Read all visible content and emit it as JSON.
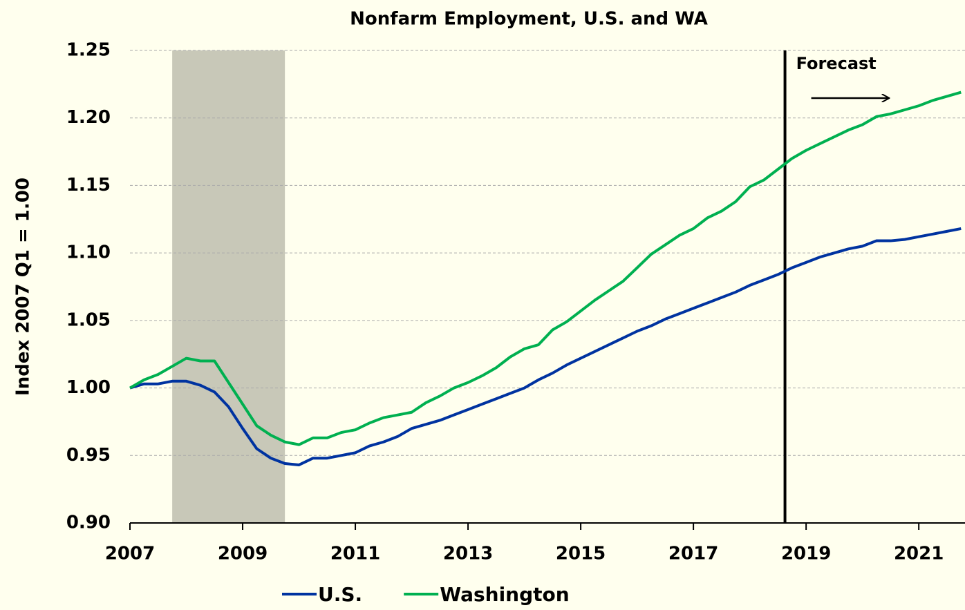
{
  "chart_data": {
    "type": "line",
    "title": "Nonfarm Employment, U.S. and WA",
    "y_label": "Index 2007 Q1 = 1.00",
    "annotation": "Forecast",
    "forecast_start": 2018.625,
    "recession": [
      2007.75,
      2009.75
    ],
    "x": [
      2007,
      2007.25,
      2007.5,
      2007.75,
      2008,
      2008.25,
      2008.5,
      2008.75,
      2009,
      2009.25,
      2009.5,
      2009.75,
      2010,
      2010.25,
      2010.5,
      2010.75,
      2011,
      2011.25,
      2011.5,
      2011.75,
      2012,
      2012.25,
      2012.5,
      2012.75,
      2013,
      2013.25,
      2013.5,
      2013.75,
      2014,
      2014.25,
      2014.5,
      2014.75,
      2015,
      2015.25,
      2015.5,
      2015.75,
      2016,
      2016.25,
      2016.5,
      2016.75,
      2017,
      2017.25,
      2017.5,
      2017.75,
      2018,
      2018.25,
      2018.5,
      2018.75,
      2019,
      2019.25,
      2019.5,
      2019.75,
      2020,
      2020.25,
      2020.5,
      2020.75,
      2021,
      2021.25,
      2021.5,
      2021.75
    ],
    "series": [
      {
        "name": "U.S.",
        "color": "#0033a0",
        "values": [
          1.0,
          1.003,
          1.003,
          1.005,
          1.005,
          1.002,
          0.997,
          0.986,
          0.97,
          0.955,
          0.948,
          0.944,
          0.943,
          0.948,
          0.948,
          0.95,
          0.952,
          0.957,
          0.96,
          0.964,
          0.97,
          0.973,
          0.976,
          0.98,
          0.984,
          0.988,
          0.992,
          0.996,
          1.0,
          1.006,
          1.011,
          1.017,
          1.022,
          1.027,
          1.032,
          1.037,
          1.042,
          1.046,
          1.051,
          1.055,
          1.059,
          1.063,
          1.067,
          1.071,
          1.076,
          1.08,
          1.084,
          1.089,
          1.093,
          1.097,
          1.1,
          1.103,
          1.105,
          1.109,
          1.109,
          1.11,
          1.112,
          1.114,
          1.116,
          1.118
        ]
      },
      {
        "name": "Washington",
        "color": "#00b050",
        "values": [
          1.0,
          1.006,
          1.01,
          1.016,
          1.022,
          1.02,
          1.02,
          1.004,
          0.988,
          0.972,
          0.965,
          0.96,
          0.958,
          0.963,
          0.963,
          0.967,
          0.969,
          0.974,
          0.978,
          0.98,
          0.982,
          0.989,
          0.994,
          1.0,
          1.004,
          1.009,
          1.015,
          1.023,
          1.029,
          1.032,
          1.043,
          1.049,
          1.057,
          1.065,
          1.072,
          1.079,
          1.089,
          1.099,
          1.106,
          1.113,
          1.118,
          1.126,
          1.131,
          1.138,
          1.149,
          1.154,
          1.162,
          1.17,
          1.176,
          1.181,
          1.186,
          1.191,
          1.195,
          1.201,
          1.203,
          1.206,
          1.209,
          1.213,
          1.216,
          1.219
        ]
      }
    ],
    "xlim": [
      2007,
      2021.82
    ],
    "xticks": [
      2007,
      2009,
      2011,
      2013,
      2015,
      2017,
      2019,
      2021
    ],
    "ylim": [
      0.9,
      1.25
    ],
    "yticks": [
      {
        "value": 0.9,
        "label": "0.90"
      },
      0.95,
      {
        "value": 1,
        "label": "1.00"
      },
      1.05,
      {
        "value": 1.1,
        "label": "1.10"
      },
      1.15,
      {
        "value": 1.2,
        "label": "1.20"
      },
      1.25
    ],
    "grid": true,
    "legend": "bottom"
  }
}
